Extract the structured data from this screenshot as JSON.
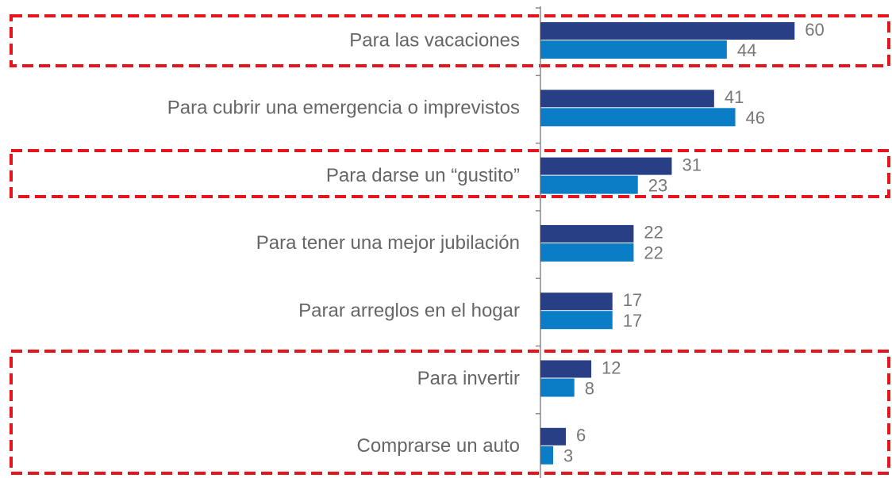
{
  "chart_data": {
    "type": "bar",
    "orientation": "horizontal",
    "categories": [
      "Para las vacaciones",
      "Para cubrir una emergencia o imprevistos",
      "Para darse un “gustito”",
      "Para tener una mejor jubilación",
      "Parar arreglos en el hogar",
      "Para invertir",
      "Comprarse un auto"
    ],
    "series": [
      {
        "color": "#283f86",
        "values": [
          60,
          41,
          31,
          22,
          17,
          12,
          6
        ]
      },
      {
        "color": "#0a7dc6",
        "values": [
          44,
          46,
          23,
          22,
          17,
          8,
          3
        ]
      }
    ],
    "xlim": [
      0,
      80
    ],
    "grid": false
  }
}
